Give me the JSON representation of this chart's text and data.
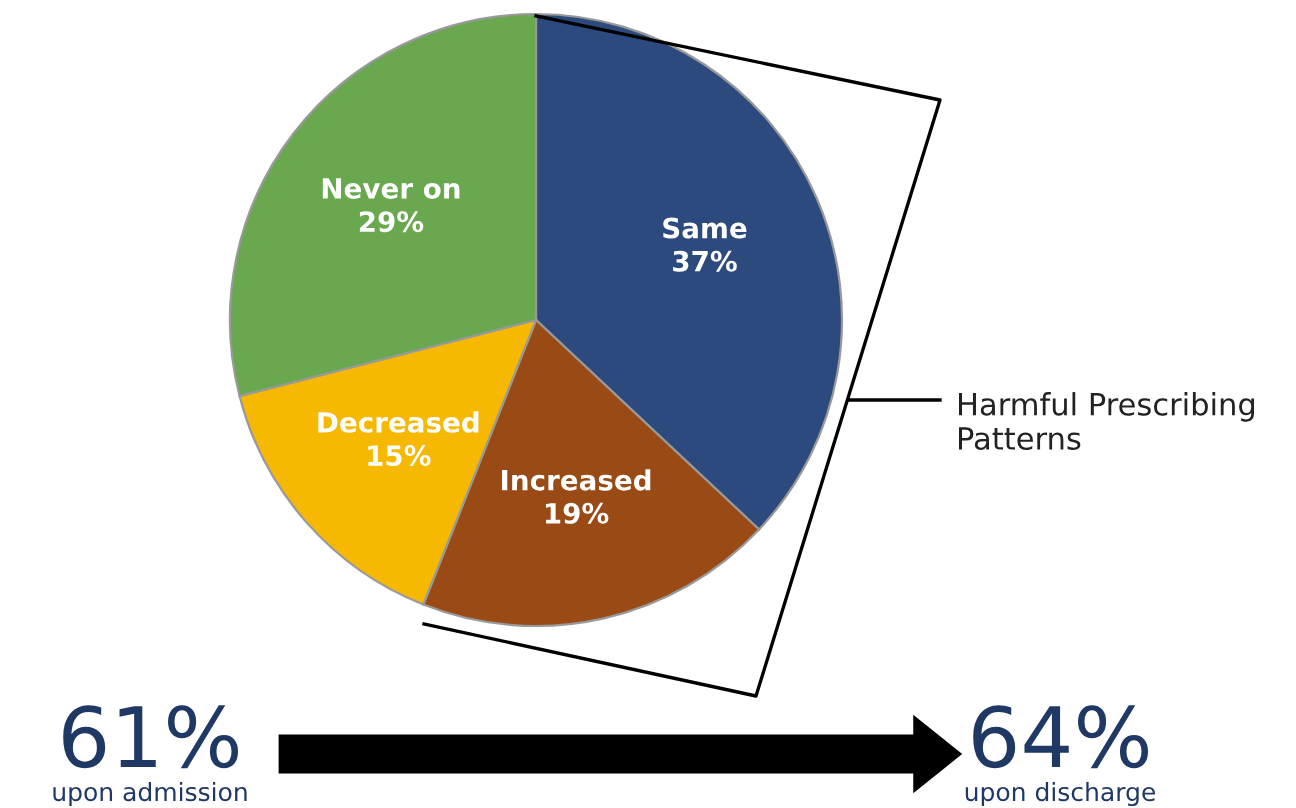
{
  "chart_data": {
    "type": "pie",
    "categories": [
      "Same",
      "Increased",
      "Decreased",
      "Never on"
    ],
    "values": [
      37,
      19,
      15,
      29
    ],
    "value_labels": [
      "37%",
      "19%",
      "15%",
      "29%"
    ],
    "colors": [
      "#2c4a7e",
      "#9a4a14",
      "#f6b800",
      "#6aa84f"
    ],
    "annotations": [
      "Harmful Prescribing Patterns",
      "61%",
      "upon admission",
      "64%",
      "upon discharge"
    ]
  }
}
